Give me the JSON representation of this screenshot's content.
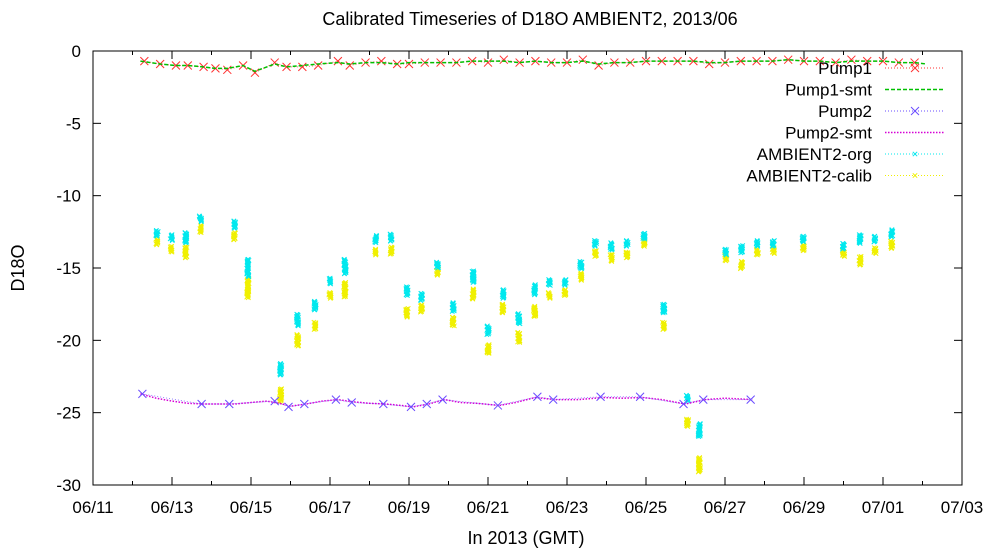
{
  "chart_data": {
    "type": "scatter",
    "title": "Calibrated Timeseries of D18O AMBIENT2, 2013/06",
    "xlabel": "In 2013 (GMT)",
    "ylabel": "D18O",
    "xlim": [
      0,
      22
    ],
    "ylim": [
      -30,
      0
    ],
    "x_unit": "days after 06/11",
    "xtick_values": [
      0,
      2,
      4,
      6,
      8,
      10,
      12,
      14,
      16,
      18,
      20,
      22
    ],
    "xtick_labels": [
      "06/11",
      "06/13",
      "06/15",
      "06/17",
      "06/19",
      "06/21",
      "06/23",
      "06/25",
      "06/27",
      "06/29",
      "07/01",
      "07/03"
    ],
    "ytick_values": [
      0,
      -5,
      -10,
      -15,
      -20,
      -25,
      -30
    ],
    "ytick_labels": [
      "0",
      "-5",
      "-10",
      "-15",
      "-20",
      "-25",
      "-30"
    ],
    "legend_position": "top-right",
    "series": [
      {
        "name": "Pump1",
        "color": "#ff3030",
        "marker": "x",
        "style": "markers",
        "points": [
          [
            1.3,
            -0.7
          ],
          [
            1.7,
            -0.9
          ],
          [
            2.1,
            -1.0
          ],
          [
            2.4,
            -1.0
          ],
          [
            2.8,
            -1.1
          ],
          [
            3.1,
            -1.2
          ],
          [
            3.4,
            -1.3
          ],
          [
            3.8,
            -1.0
          ],
          [
            4.1,
            -1.5
          ],
          [
            4.6,
            -0.8
          ],
          [
            4.9,
            -1.1
          ],
          [
            5.3,
            -1.1
          ],
          [
            5.7,
            -1.0
          ],
          [
            6.2,
            -0.7
          ],
          [
            6.5,
            -1.0
          ],
          [
            6.9,
            -0.8
          ],
          [
            7.3,
            -0.7
          ],
          [
            7.7,
            -0.9
          ],
          [
            8.0,
            -0.9
          ],
          [
            8.4,
            -0.8
          ],
          [
            8.8,
            -0.8
          ],
          [
            9.2,
            -0.8
          ],
          [
            9.6,
            -0.7
          ],
          [
            10.0,
            -0.8
          ],
          [
            10.4,
            -0.6
          ],
          [
            10.8,
            -0.8
          ],
          [
            11.2,
            -0.7
          ],
          [
            11.6,
            -0.8
          ],
          [
            12.0,
            -0.8
          ],
          [
            12.4,
            -0.6
          ],
          [
            12.8,
            -1.0
          ],
          [
            13.2,
            -0.8
          ],
          [
            13.6,
            -0.8
          ],
          [
            14.0,
            -0.7
          ],
          [
            14.4,
            -0.7
          ],
          [
            14.8,
            -0.7
          ],
          [
            15.2,
            -0.7
          ],
          [
            15.6,
            -0.9
          ],
          [
            16.0,
            -0.8
          ],
          [
            16.4,
            -0.7
          ],
          [
            16.8,
            -0.7
          ],
          [
            17.2,
            -0.7
          ],
          [
            17.6,
            -0.6
          ],
          [
            18.0,
            -0.7
          ],
          [
            18.4,
            -0.7
          ],
          [
            18.8,
            -0.8
          ],
          [
            19.2,
            -0.6
          ],
          [
            19.6,
            -0.7
          ],
          [
            20.0,
            -0.7
          ],
          [
            20.4,
            -0.8
          ],
          [
            20.8,
            -0.8
          ]
        ]
      },
      {
        "name": "Pump1-smt",
        "color": "#00c000",
        "marker": "none",
        "style": "dashed",
        "points": [
          [
            1.2,
            -0.7
          ],
          [
            1.7,
            -0.9
          ],
          [
            2.1,
            -1.0
          ],
          [
            2.4,
            -1.0
          ],
          [
            2.8,
            -1.1
          ],
          [
            3.1,
            -1.2
          ],
          [
            3.4,
            -1.2
          ],
          [
            3.8,
            -1.0
          ],
          [
            4.1,
            -1.4
          ],
          [
            4.6,
            -0.9
          ],
          [
            4.9,
            -1.1
          ],
          [
            5.3,
            -1.0
          ],
          [
            5.7,
            -0.9
          ],
          [
            6.2,
            -0.8
          ],
          [
            6.5,
            -0.9
          ],
          [
            6.9,
            -0.8
          ],
          [
            7.3,
            -0.8
          ],
          [
            7.7,
            -0.9
          ],
          [
            8.0,
            -0.8
          ],
          [
            8.4,
            -0.8
          ],
          [
            8.8,
            -0.8
          ],
          [
            9.2,
            -0.8
          ],
          [
            9.6,
            -0.7
          ],
          [
            10.0,
            -0.7
          ],
          [
            10.4,
            -0.7
          ],
          [
            10.8,
            -0.8
          ],
          [
            11.2,
            -0.7
          ],
          [
            11.6,
            -0.8
          ],
          [
            12.0,
            -0.8
          ],
          [
            12.4,
            -0.7
          ],
          [
            12.8,
            -0.9
          ],
          [
            13.2,
            -0.8
          ],
          [
            13.6,
            -0.8
          ],
          [
            14.0,
            -0.7
          ],
          [
            14.4,
            -0.7
          ],
          [
            14.8,
            -0.7
          ],
          [
            15.2,
            -0.7
          ],
          [
            15.6,
            -0.8
          ],
          [
            16.0,
            -0.8
          ],
          [
            16.4,
            -0.7
          ],
          [
            16.8,
            -0.7
          ],
          [
            17.2,
            -0.7
          ],
          [
            17.6,
            -0.6
          ],
          [
            18.0,
            -0.7
          ],
          [
            18.4,
            -0.7
          ],
          [
            18.8,
            -0.8
          ],
          [
            19.2,
            -0.7
          ],
          [
            19.6,
            -0.7
          ],
          [
            20.0,
            -0.7
          ],
          [
            20.4,
            -0.8
          ],
          [
            20.8,
            -0.8
          ],
          [
            21.1,
            -0.9
          ]
        ]
      },
      {
        "name": "Pump2",
        "color": "#6a4cff",
        "marker": "x",
        "style": "markers",
        "points": [
          [
            1.25,
            -23.7
          ],
          [
            2.75,
            -24.4
          ],
          [
            3.45,
            -24.4
          ],
          [
            4.6,
            -24.2
          ],
          [
            4.95,
            -24.6
          ],
          [
            5.35,
            -24.4
          ],
          [
            6.15,
            -24.1
          ],
          [
            6.55,
            -24.3
          ],
          [
            7.35,
            -24.4
          ],
          [
            8.05,
            -24.6
          ],
          [
            8.45,
            -24.4
          ],
          [
            8.85,
            -24.1
          ],
          [
            10.25,
            -24.5
          ],
          [
            11.25,
            -23.9
          ],
          [
            11.65,
            -24.1
          ],
          [
            12.85,
            -23.9
          ],
          [
            13.85,
            -23.9
          ],
          [
            14.95,
            -24.4
          ],
          [
            15.45,
            -24.1
          ],
          [
            16.65,
            -24.1
          ]
        ]
      },
      {
        "name": "Pump2-smt",
        "color": "#d600d6",
        "marker": "none",
        "style": "dotted",
        "points": [
          [
            1.2,
            -23.7
          ],
          [
            1.6,
            -24.0
          ],
          [
            2.0,
            -24.2
          ],
          [
            2.4,
            -24.35
          ],
          [
            2.8,
            -24.4
          ],
          [
            3.2,
            -24.4
          ],
          [
            3.6,
            -24.4
          ],
          [
            4.0,
            -24.3
          ],
          [
            4.4,
            -24.2
          ],
          [
            4.8,
            -24.4
          ],
          [
            5.0,
            -24.55
          ],
          [
            5.4,
            -24.4
          ],
          [
            5.8,
            -24.2
          ],
          [
            6.2,
            -24.1
          ],
          [
            6.6,
            -24.25
          ],
          [
            7.0,
            -24.35
          ],
          [
            7.4,
            -24.4
          ],
          [
            7.8,
            -24.5
          ],
          [
            8.1,
            -24.6
          ],
          [
            8.5,
            -24.4
          ],
          [
            8.9,
            -24.1
          ],
          [
            9.3,
            -24.3
          ],
          [
            9.7,
            -24.35
          ],
          [
            10.3,
            -24.5
          ],
          [
            10.7,
            -24.3
          ],
          [
            11.2,
            -23.95
          ],
          [
            11.7,
            -24.1
          ],
          [
            12.3,
            -24.1
          ],
          [
            12.9,
            -23.95
          ],
          [
            13.4,
            -24.0
          ],
          [
            13.9,
            -23.95
          ],
          [
            14.4,
            -24.1
          ],
          [
            15.0,
            -24.4
          ],
          [
            15.5,
            -24.1
          ],
          [
            16.0,
            -24.0
          ],
          [
            16.7,
            -24.1
          ]
        ]
      },
      {
        "name": "AMBIENT2-org",
        "color": "#00e8ee",
        "marker": "x",
        "style": "markers",
        "clusters": [
          [
            1.62,
            -12.6,
            0.4
          ],
          [
            1.98,
            -12.9,
            0.4
          ],
          [
            2.35,
            -12.9,
            0.7
          ],
          [
            2.72,
            -11.6,
            0.4
          ],
          [
            3.58,
            -12.0,
            0.5
          ],
          [
            3.92,
            -15.0,
            1.2
          ],
          [
            4.75,
            -22.0,
            0.8
          ],
          [
            5.18,
            -18.6,
            0.8
          ],
          [
            5.62,
            -17.6,
            0.6
          ],
          [
            6.0,
            -15.9,
            0.4
          ],
          [
            6.38,
            -14.9,
            1.0
          ],
          [
            7.15,
            -13.0,
            0.5
          ],
          [
            7.55,
            -12.9,
            0.5
          ],
          [
            7.95,
            -16.6,
            0.6
          ],
          [
            8.32,
            -17.0,
            0.5
          ],
          [
            8.72,
            -14.8,
            0.4
          ],
          [
            9.12,
            -17.7,
            0.6
          ],
          [
            9.62,
            -15.6,
            0.8
          ],
          [
            10.0,
            -19.3,
            0.6
          ],
          [
            10.38,
            -16.8,
            0.6
          ],
          [
            10.78,
            -18.5,
            0.7
          ],
          [
            11.18,
            -16.5,
            0.7
          ],
          [
            11.55,
            -16.0,
            0.4
          ],
          [
            11.95,
            -16.0,
            0.4
          ],
          [
            12.35,
            -14.8,
            0.5
          ],
          [
            12.72,
            -13.3,
            0.4
          ],
          [
            13.12,
            -13.5,
            0.5
          ],
          [
            13.52,
            -13.3,
            0.4
          ],
          [
            13.95,
            -12.8,
            0.4
          ],
          [
            14.45,
            -17.8,
            0.6
          ],
          [
            15.05,
            -24.0,
            0.4
          ],
          [
            15.35,
            -26.2,
            0.9
          ],
          [
            16.02,
            -13.9,
            0.4
          ],
          [
            16.42,
            -13.7,
            0.5
          ],
          [
            16.82,
            -13.3,
            0.4
          ],
          [
            17.22,
            -13.3,
            0.4
          ],
          [
            17.98,
            -13.0,
            0.4
          ],
          [
            19.0,
            -13.5,
            0.4
          ],
          [
            19.42,
            -13.0,
            0.6
          ],
          [
            19.8,
            -13.0,
            0.4
          ],
          [
            20.22,
            -12.6,
            0.5
          ]
        ]
      },
      {
        "name": "AMBIENT2-calib",
        "color": "#f0f000",
        "marker": "x",
        "style": "markers",
        "clusters": [
          [
            1.62,
            -13.2,
            0.4
          ],
          [
            1.98,
            -13.7,
            0.4
          ],
          [
            2.35,
            -13.9,
            0.8
          ],
          [
            2.72,
            -12.3,
            0.5
          ],
          [
            3.58,
            -12.8,
            0.5
          ],
          [
            3.92,
            -16.4,
            1.3
          ],
          [
            4.75,
            -23.8,
            0.9
          ],
          [
            5.18,
            -20.0,
            0.8
          ],
          [
            5.62,
            -19.0,
            0.5
          ],
          [
            6.0,
            -16.9,
            0.4
          ],
          [
            6.38,
            -16.5,
            1.0
          ],
          [
            7.15,
            -13.9,
            0.4
          ],
          [
            7.55,
            -13.8,
            0.5
          ],
          [
            7.95,
            -18.1,
            0.6
          ],
          [
            8.32,
            -17.8,
            0.5
          ],
          [
            8.72,
            -15.3,
            0.4
          ],
          [
            9.12,
            -18.7,
            0.6
          ],
          [
            9.62,
            -16.8,
            0.7
          ],
          [
            10.0,
            -20.6,
            0.6
          ],
          [
            10.38,
            -17.8,
            0.6
          ],
          [
            10.78,
            -19.8,
            0.7
          ],
          [
            11.18,
            -18.0,
            0.7
          ],
          [
            11.55,
            -16.9,
            0.4
          ],
          [
            11.95,
            -16.7,
            0.4
          ],
          [
            12.35,
            -15.6,
            0.5
          ],
          [
            12.72,
            -14.0,
            0.4
          ],
          [
            13.12,
            -14.3,
            0.5
          ],
          [
            13.52,
            -14.1,
            0.4
          ],
          [
            13.95,
            -13.3,
            0.4
          ],
          [
            14.45,
            -19.0,
            0.5
          ],
          [
            15.05,
            -25.7,
            0.5
          ],
          [
            15.35,
            -28.6,
            1.0
          ],
          [
            16.02,
            -14.3,
            0.4
          ],
          [
            16.42,
            -14.8,
            0.5
          ],
          [
            16.82,
            -13.9,
            0.4
          ],
          [
            17.22,
            -13.8,
            0.4
          ],
          [
            17.98,
            -13.6,
            0.4
          ],
          [
            19.0,
            -14.0,
            0.4
          ],
          [
            19.42,
            -14.5,
            0.6
          ],
          [
            19.8,
            -13.8,
            0.4
          ],
          [
            20.22,
            -13.4,
            0.5
          ]
        ]
      }
    ]
  }
}
